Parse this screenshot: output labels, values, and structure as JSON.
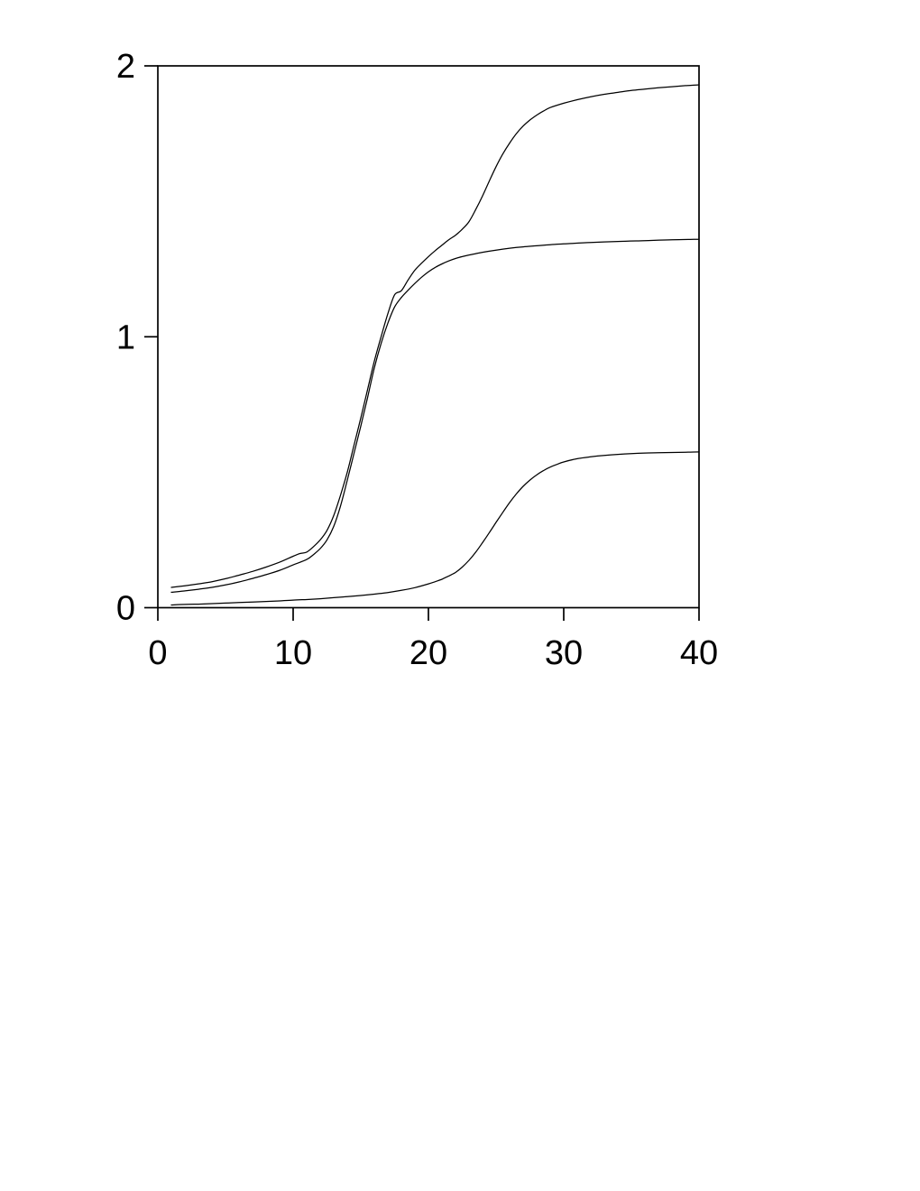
{
  "page": {
    "background": "#ffffff"
  },
  "chart_data": {
    "type": "line",
    "title": "",
    "xlabel": "",
    "ylabel": "",
    "xlim": [
      0,
      40
    ],
    "ylim": [
      0,
      2
    ],
    "x_ticks": [
      0,
      10,
      20,
      30,
      40
    ],
    "x_tick_labels": [
      "0",
      "10",
      "20",
      "30",
      "40"
    ],
    "y_ticks": [
      0,
      1,
      2
    ],
    "y_tick_labels": [
      "0",
      "1",
      "2"
    ],
    "grid": false,
    "legend": "none",
    "frame": "full-box",
    "axis_color": "#000000",
    "line_color": "#000000",
    "series": [
      {
        "name": "upper-double-sigmoid-curve",
        "points": [
          [
            1,
            0.075
          ],
          [
            2,
            0.081
          ],
          [
            3,
            0.088
          ],
          [
            4,
            0.096
          ],
          [
            5,
            0.107
          ],
          [
            6,
            0.12
          ],
          [
            7,
            0.134
          ],
          [
            8,
            0.15
          ],
          [
            9,
            0.168
          ],
          [
            10,
            0.19
          ],
          [
            10.5,
            0.2
          ],
          [
            11,
            0.205
          ],
          [
            11.5,
            0.225
          ],
          [
            12,
            0.25
          ],
          [
            12.5,
            0.285
          ],
          [
            13,
            0.34
          ],
          [
            13.5,
            0.415
          ],
          [
            14,
            0.5
          ],
          [
            14.5,
            0.6
          ],
          [
            15,
            0.7
          ],
          [
            15.5,
            0.805
          ],
          [
            16,
            0.91
          ],
          [
            16.5,
            1.0
          ],
          [
            17,
            1.085
          ],
          [
            17.5,
            1.155
          ],
          [
            18,
            1.17
          ],
          [
            18.5,
            1.21
          ],
          [
            19,
            1.246
          ],
          [
            19.5,
            1.272
          ],
          [
            20,
            1.296
          ],
          [
            20.5,
            1.318
          ],
          [
            21,
            1.338
          ],
          [
            21.5,
            1.358
          ],
          [
            22,
            1.375
          ],
          [
            22.5,
            1.397
          ],
          [
            23,
            1.425
          ],
          [
            23.5,
            1.47
          ],
          [
            24,
            1.52
          ],
          [
            24.5,
            1.575
          ],
          [
            25,
            1.628
          ],
          [
            25.5,
            1.675
          ],
          [
            26,
            1.715
          ],
          [
            26.5,
            1.75
          ],
          [
            27,
            1.778
          ],
          [
            27.5,
            1.8
          ],
          [
            28,
            1.818
          ],
          [
            28.5,
            1.833
          ],
          [
            29,
            1.846
          ],
          [
            30,
            1.862
          ],
          [
            31,
            1.875
          ],
          [
            32,
            1.886
          ],
          [
            33,
            1.895
          ],
          [
            34,
            1.902
          ],
          [
            35,
            1.909
          ],
          [
            36,
            1.914
          ],
          [
            37,
            1.919
          ],
          [
            38,
            1.923
          ],
          [
            39,
            1.927
          ],
          [
            40,
            1.93
          ]
        ]
      },
      {
        "name": "middle-sigmoid-curve",
        "points": [
          [
            1,
            0.057
          ],
          [
            2,
            0.062
          ],
          [
            3,
            0.068
          ],
          [
            4,
            0.075
          ],
          [
            5,
            0.084
          ],
          [
            6,
            0.095
          ],
          [
            7,
            0.108
          ],
          [
            8,
            0.122
          ],
          [
            9,
            0.138
          ],
          [
            10,
            0.158
          ],
          [
            11,
            0.178
          ],
          [
            11.5,
            0.196
          ],
          [
            12,
            0.218
          ],
          [
            12.5,
            0.25
          ],
          [
            13,
            0.3
          ],
          [
            13.5,
            0.375
          ],
          [
            14,
            0.47
          ],
          [
            14.5,
            0.57
          ],
          [
            15,
            0.67
          ],
          [
            15.5,
            0.775
          ],
          [
            16,
            0.885
          ],
          [
            16.5,
            0.975
          ],
          [
            17,
            1.05
          ],
          [
            17.5,
            1.11
          ],
          [
            18,
            1.145
          ],
          [
            18.5,
            1.172
          ],
          [
            19,
            1.197
          ],
          [
            19.5,
            1.22
          ],
          [
            20,
            1.24
          ],
          [
            20.5,
            1.256
          ],
          [
            21,
            1.269
          ],
          [
            21.5,
            1.28
          ],
          [
            22,
            1.289
          ],
          [
            22.5,
            1.296
          ],
          [
            23,
            1.302
          ],
          [
            23.5,
            1.307
          ],
          [
            24,
            1.312
          ],
          [
            25,
            1.32
          ],
          [
            26,
            1.327
          ],
          [
            27,
            1.332
          ],
          [
            28,
            1.336
          ],
          [
            29,
            1.34
          ],
          [
            30,
            1.343
          ],
          [
            32,
            1.348
          ],
          [
            34,
            1.352
          ],
          [
            36,
            1.355
          ],
          [
            38,
            1.358
          ],
          [
            40,
            1.36
          ]
        ]
      },
      {
        "name": "lower-sigmoid-curve",
        "points": [
          [
            1,
            0.01
          ],
          [
            2,
            0.012
          ],
          [
            3,
            0.013
          ],
          [
            4,
            0.015
          ],
          [
            5,
            0.017
          ],
          [
            6,
            0.019
          ],
          [
            7,
            0.021
          ],
          [
            8,
            0.023
          ],
          [
            9,
            0.025
          ],
          [
            10,
            0.028
          ],
          [
            11,
            0.03
          ],
          [
            12,
            0.033
          ],
          [
            13,
            0.037
          ],
          [
            14,
            0.041
          ],
          [
            15,
            0.045
          ],
          [
            16,
            0.05
          ],
          [
            17,
            0.056
          ],
          [
            18,
            0.064
          ],
          [
            19,
            0.074
          ],
          [
            20,
            0.088
          ],
          [
            20.5,
            0.096
          ],
          [
            21,
            0.105
          ],
          [
            21.5,
            0.117
          ],
          [
            22,
            0.13
          ],
          [
            22.5,
            0.15
          ],
          [
            23,
            0.175
          ],
          [
            23.5,
            0.205
          ],
          [
            24,
            0.24
          ],
          [
            24.5,
            0.277
          ],
          [
            25,
            0.315
          ],
          [
            25.5,
            0.352
          ],
          [
            26,
            0.388
          ],
          [
            26.5,
            0.42
          ],
          [
            27,
            0.448
          ],
          [
            27.5,
            0.471
          ],
          [
            28,
            0.49
          ],
          [
            28.5,
            0.506
          ],
          [
            29,
            0.519
          ],
          [
            29.5,
            0.529
          ],
          [
            30,
            0.538
          ],
          [
            31,
            0.55
          ],
          [
            32,
            0.557
          ],
          [
            33,
            0.562
          ],
          [
            34,
            0.566
          ],
          [
            35,
            0.569
          ],
          [
            36,
            0.571
          ],
          [
            37,
            0.572
          ],
          [
            38,
            0.573
          ],
          [
            39,
            0.574
          ],
          [
            40,
            0.575
          ]
        ]
      }
    ]
  }
}
